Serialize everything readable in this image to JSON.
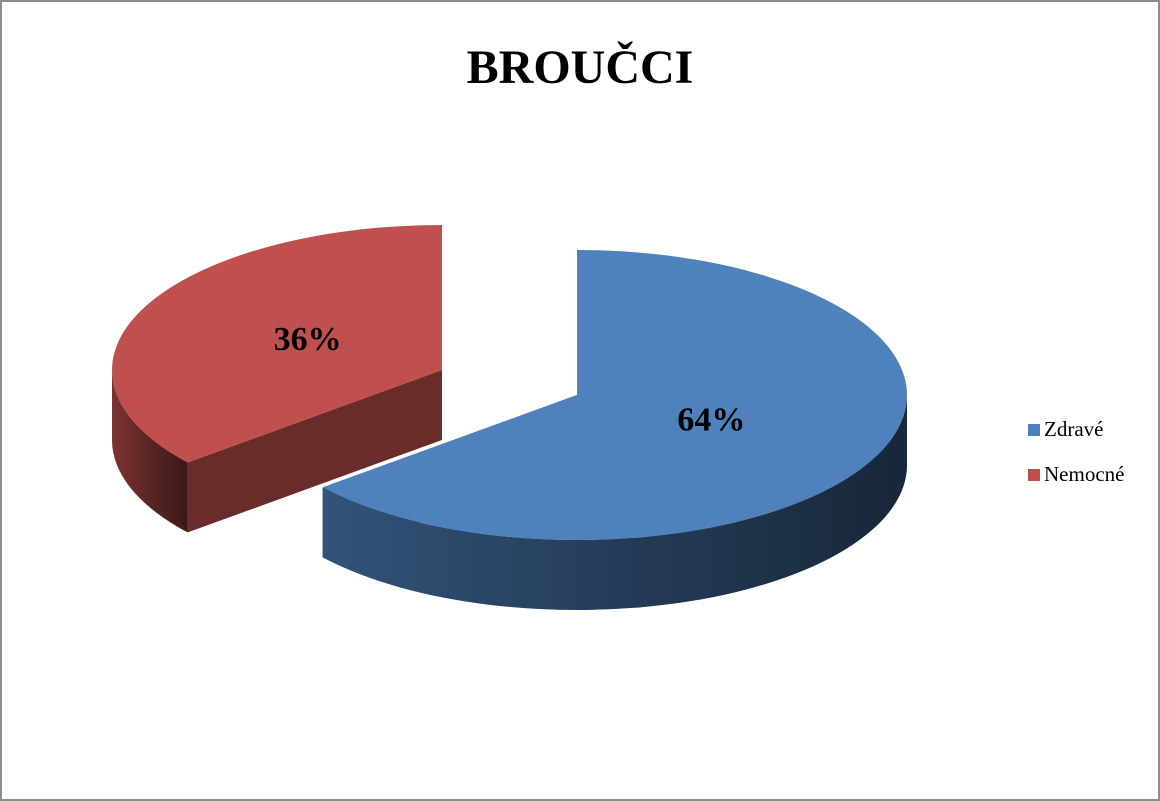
{
  "chart_data": {
    "type": "pie",
    "title": "BROUČCI",
    "categories": [
      "Zdravé",
      "Nemocné"
    ],
    "values": [
      64,
      36
    ],
    "value_labels": [
      "64%",
      "36%"
    ],
    "colors": [
      "#4f81bd",
      "#c0504d"
    ],
    "legend": "right"
  }
}
